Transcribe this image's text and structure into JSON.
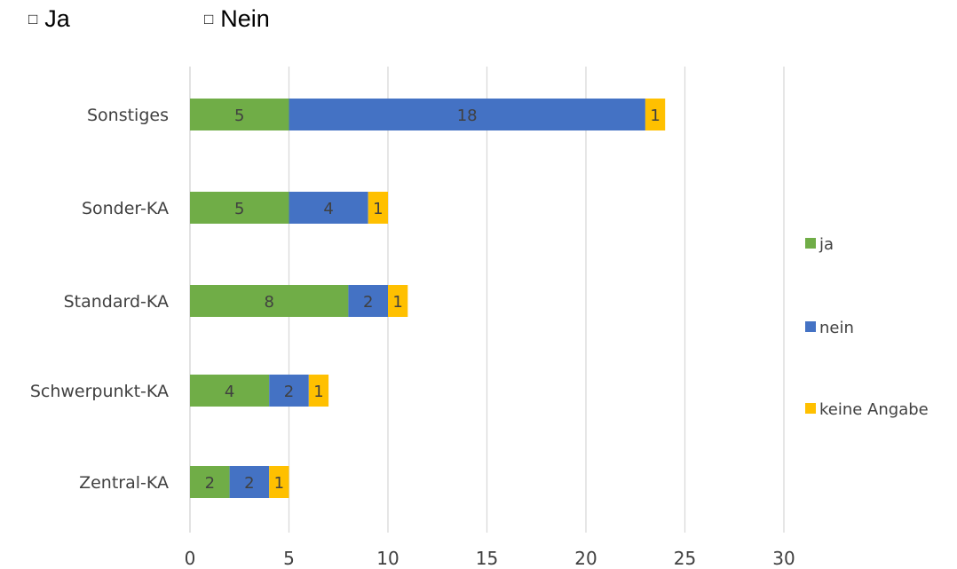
{
  "options": [
    {
      "label": "Ja"
    },
    {
      "label": "Nein"
    }
  ],
  "chart_data": {
    "type": "bar",
    "orientation": "horizontal",
    "stacked": true,
    "categories": [
      "Sonstiges",
      "Sonder-KA",
      "Standard-KA",
      "Schwerpunkt-KA",
      "Zentral-KA"
    ],
    "series": [
      {
        "name": "ja",
        "color": "#70AD47",
        "values": [
          5,
          5,
          8,
          4,
          2
        ]
      },
      {
        "name": "nein",
        "color": "#4472C4",
        "values": [
          18,
          4,
          2,
          2,
          2
        ]
      },
      {
        "name": "keine Angabe",
        "color": "#FFC000",
        "values": [
          1,
          1,
          1,
          1,
          1
        ]
      }
    ],
    "xlim": [
      0,
      30
    ],
    "x_ticks": [
      "0",
      "5",
      "10",
      "15",
      "20",
      "25",
      "30"
    ],
    "grid": "vertical",
    "legend_position": "right",
    "title": "",
    "xlabel": "",
    "ylabel": ""
  }
}
